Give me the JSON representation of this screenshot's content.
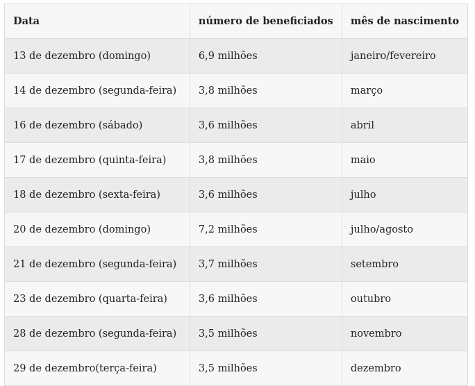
{
  "table": {
    "header": [
      "Data",
      "número de beneficiados",
      "mês de nascimento"
    ],
    "rows": [
      [
        "13 de dezembro (domingo)",
        "6,9 milhões",
        "janeiro/fevereiro"
      ],
      [
        "14 de dezembro (segunda-feira)",
        "3,8 milhões",
        "março"
      ],
      [
        "16 de dezembro (sábado)",
        "3,6 milhões",
        "abril"
      ],
      [
        "17 de dezembro (quinta-feira)",
        "3,8 milhões",
        "maio"
      ],
      [
        "18 de dezembro (sexta-feira)",
        "3,6 milhões",
        "julho"
      ],
      [
        "20 de dezembro (domingo)",
        "7,2 milhões",
        "julho/agosto"
      ],
      [
        "21 de dezembro (segunda-feira)",
        "3,7 milhões",
        "setembro"
      ],
      [
        "23 de dezembro (quarta-feira)",
        "3,6 milhões",
        "outubro"
      ],
      [
        "28 de dezembro (segunda-feira)",
        "3,5 milhões",
        "novembro"
      ],
      [
        "29 de dezembro(terça-feira)",
        "3,5 milhões",
        "dezembro"
      ]
    ]
  }
}
